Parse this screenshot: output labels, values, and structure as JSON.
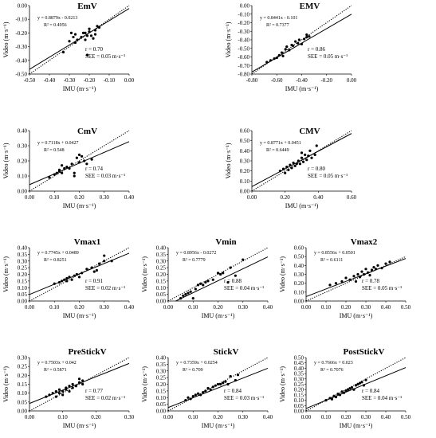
{
  "chart_data": [
    {
      "type": "scatter",
      "title": "EmV",
      "xlabel": "IMU (m·s⁻¹)",
      "ylabel": "Video (m·s⁻¹)",
      "xlim": [
        -0.5,
        0.0
      ],
      "ylim": [
        -0.5,
        0.0
      ],
      "xticks": [
        "-0.50",
        "-0.40",
        "-0.30",
        "-0.20",
        "-0.10",
        "0.00"
      ],
      "yticks": [
        "-0.50",
        "-0.40",
        "-0.30",
        "-0.20",
        "-0.10",
        "0.00"
      ],
      "points": [
        [
          -0.33,
          -0.34
        ],
        [
          -0.3,
          -0.26
        ],
        [
          -0.29,
          -0.2
        ],
        [
          -0.28,
          -0.23
        ],
        [
          -0.27,
          -0.27
        ],
        [
          -0.27,
          -0.21
        ],
        [
          -0.26,
          -0.25
        ],
        [
          -0.24,
          -0.23
        ],
        [
          -0.23,
          -0.2
        ],
        [
          -0.22,
          -0.2
        ],
        [
          -0.22,
          -0.25
        ],
        [
          -0.21,
          -0.22
        ],
        [
          -0.2,
          -0.19
        ],
        [
          -0.2,
          -0.17
        ],
        [
          -0.21,
          -0.36
        ],
        [
          -0.19,
          -0.22
        ],
        [
          -0.18,
          -0.24
        ],
        [
          -0.17,
          -0.18
        ],
        [
          -0.17,
          -0.21
        ],
        [
          -0.16,
          -0.15
        ],
        [
          -0.15,
          -0.16
        ]
      ],
      "fit": {
        "slope": 0.8879,
        "intercept": -0.0213
      },
      "equation": "y = 0.8879x - 0.0213",
      "r2": "R² = 0.4956",
      "r": "r = 0.70",
      "see": "SEE = 0.05 m·s⁻¹"
    },
    {
      "type": "scatter",
      "title": "EMV",
      "xlabel": "IMU (m·s⁻¹)",
      "ylabel": "Video (m·s⁻¹)",
      "xlim": [
        -0.8,
        0.0
      ],
      "ylim": [
        -0.8,
        0.0
      ],
      "xticks": [
        "-0.80",
        "-0.60",
        "-0.40",
        "-0.20",
        "0.00"
      ],
      "yticks": [
        "-0.80",
        "-0.70",
        "-0.60",
        "-0.50",
        "-0.40",
        "-0.30",
        "-0.20",
        "-0.10",
        "0.00"
      ],
      "points": [
        [
          -0.68,
          -0.66
        ],
        [
          -0.65,
          -0.64
        ],
        [
          -0.62,
          -0.62
        ],
        [
          -0.6,
          -0.61
        ],
        [
          -0.58,
          -0.58
        ],
        [
          -0.56,
          -0.55
        ],
        [
          -0.55,
          -0.59
        ],
        [
          -0.53,
          -0.51
        ],
        [
          -0.52,
          -0.48
        ],
        [
          -0.5,
          -0.52
        ],
        [
          -0.48,
          -0.46
        ],
        [
          -0.47,
          -0.47
        ],
        [
          -0.45,
          -0.42
        ],
        [
          -0.43,
          -0.44
        ],
        [
          -0.42,
          -0.4
        ],
        [
          -0.4,
          -0.45
        ],
        [
          -0.38,
          -0.39
        ],
        [
          -0.36,
          -0.37
        ],
        [
          -0.36,
          -0.34
        ],
        [
          -0.34,
          -0.36
        ]
      ],
      "fit": {
        "slope": 0.8441,
        "intercept": -0.101
      },
      "equation": "y = 0.8441x - 0.101",
      "r2": "R² = 0.7377",
      "r": "r = 0.86",
      "see": "SEE = 0.05 m·s⁻¹"
    },
    {
      "type": "scatter",
      "title": "CmV",
      "xlabel": "IMU (m·s⁻¹)",
      "ylabel": "Video (m·s⁻¹)",
      "xlim": [
        0.0,
        0.4
      ],
      "ylim": [
        0.0,
        0.4
      ],
      "xticks": [
        "0.00",
        "0.10",
        "0.20",
        "0.30",
        "0.40"
      ],
      "yticks": [
        "0.00",
        "0.10",
        "0.20",
        "0.30",
        "0.40"
      ],
      "points": [
        [
          0.08,
          0.09
        ],
        [
          0.1,
          0.11
        ],
        [
          0.11,
          0.12
        ],
        [
          0.12,
          0.13
        ],
        [
          0.12,
          0.14
        ],
        [
          0.13,
          0.12
        ],
        [
          0.13,
          0.17
        ],
        [
          0.14,
          0.15
        ],
        [
          0.15,
          0.16
        ],
        [
          0.16,
          0.15
        ],
        [
          0.17,
          0.18
        ],
        [
          0.18,
          0.12
        ],
        [
          0.18,
          0.1
        ],
        [
          0.19,
          0.22
        ],
        [
          0.2,
          0.19
        ],
        [
          0.2,
          0.24
        ],
        [
          0.21,
          0.23
        ],
        [
          0.22,
          0.2
        ],
        [
          0.23,
          0.18
        ],
        [
          0.25,
          0.21
        ]
      ],
      "fit": {
        "slope": 0.7118,
        "intercept": 0.0427
      },
      "equation": "y = 0.7118x + 0.0427",
      "r2": "R² = 0.548",
      "r": "r = 0.74",
      "see": "SEE = 0.03 m·s⁻¹"
    },
    {
      "type": "scatter",
      "title": "CMV",
      "xlabel": "IMU (m·s⁻¹)",
      "ylabel": "Video (m·s⁻¹)",
      "xlim": [
        0.0,
        0.6
      ],
      "ylim": [
        0.0,
        0.6
      ],
      "xticks": [
        "0.00",
        "0.20",
        "0.40",
        "0.60"
      ],
      "yticks": [
        "0.00",
        "0.10",
        "0.20",
        "0.30",
        "0.40",
        "0.50",
        "0.60"
      ],
      "points": [
        [
          0.17,
          0.2
        ],
        [
          0.19,
          0.22
        ],
        [
          0.2,
          0.18
        ],
        [
          0.21,
          0.24
        ],
        [
          0.22,
          0.21
        ],
        [
          0.23,
          0.26
        ],
        [
          0.24,
          0.23
        ],
        [
          0.25,
          0.28
        ],
        [
          0.26,
          0.25
        ],
        [
          0.27,
          0.27
        ],
        [
          0.28,
          0.3
        ],
        [
          0.29,
          0.27
        ],
        [
          0.3,
          0.38
        ],
        [
          0.3,
          0.33
        ],
        [
          0.31,
          0.29
        ],
        [
          0.32,
          0.36
        ],
        [
          0.33,
          0.31
        ],
        [
          0.34,
          0.35
        ],
        [
          0.35,
          0.4
        ],
        [
          0.36,
          0.33
        ],
        [
          0.38,
          0.36
        ],
        [
          0.39,
          0.45
        ]
      ],
      "fit": {
        "slope": 0.8771,
        "intercept": 0.0451
      },
      "equation": "y = 0.8771x + 0.0451",
      "r2": "R² = 0.6449",
      "r": "r = 0.80",
      "see": "SEE = 0.05 m·s⁻¹"
    },
    {
      "type": "scatter",
      "title": "Vmax1",
      "xlabel": "IMU (m·s⁻¹)",
      "ylabel": "Video (m·s⁻¹)",
      "xlim": [
        0.0,
        0.4
      ],
      "ylim": [
        0.0,
        0.4
      ],
      "xticks": [
        "0.00",
        "0.10",
        "0.20",
        "0.30",
        "0.40"
      ],
      "yticks": [
        "0.00",
        "0.05",
        "0.10",
        "0.15",
        "0.20",
        "0.25",
        "0.30",
        "0.35",
        "0.40"
      ],
      "points": [
        [
          0.1,
          0.13
        ],
        [
          0.12,
          0.14
        ],
        [
          0.13,
          0.15
        ],
        [
          0.14,
          0.16
        ],
        [
          0.15,
          0.17
        ],
        [
          0.15,
          0.15
        ],
        [
          0.16,
          0.18
        ],
        [
          0.17,
          0.16
        ],
        [
          0.18,
          0.19
        ],
        [
          0.19,
          0.2
        ],
        [
          0.2,
          0.18
        ],
        [
          0.21,
          0.21
        ],
        [
          0.23,
          0.24
        ],
        [
          0.25,
          0.25
        ],
        [
          0.26,
          0.22
        ],
        [
          0.27,
          0.23
        ],
        [
          0.28,
          0.28
        ],
        [
          0.3,
          0.3
        ],
        [
          0.3,
          0.34
        ],
        [
          0.33,
          0.3
        ]
      ],
      "fit": {
        "slope": 0.7745,
        "intercept": 0.0489
      },
      "equation": "y = 0.7745x + 0.0489",
      "r2": "R² = 0.8251",
      "r": "r = 0.91",
      "see": "SEE = 0.02 m·s⁻¹"
    },
    {
      "type": "scatter",
      "title": "Vmin",
      "xlabel": "IMU (m·s⁻¹)",
      "ylabel": "Video (m·s⁻¹)",
      "xlim": [
        0.0,
        0.4
      ],
      "ylim": [
        0.0,
        0.4
      ],
      "xticks": [
        "0.00",
        "0.10",
        "0.20",
        "0.30",
        "0.40"
      ],
      "yticks": [
        "0.00",
        "0.05",
        "0.10",
        "0.15",
        "0.20",
        "0.25",
        "0.30",
        "0.35",
        "0.40"
      ],
      "points": [
        [
          0.05,
          0.02
        ],
        [
          0.06,
          0.04
        ],
        [
          0.07,
          0.05
        ],
        [
          0.08,
          0.06
        ],
        [
          0.09,
          0.07
        ],
        [
          0.1,
          0.02
        ],
        [
          0.11,
          0.09
        ],
        [
          0.12,
          0.12
        ],
        [
          0.13,
          0.13
        ],
        [
          0.14,
          0.12
        ],
        [
          0.15,
          0.14
        ],
        [
          0.16,
          0.15
        ],
        [
          0.18,
          0.16
        ],
        [
          0.2,
          0.21
        ],
        [
          0.21,
          0.2
        ],
        [
          0.22,
          0.21
        ],
        [
          0.24,
          0.14
        ],
        [
          0.25,
          0.25
        ],
        [
          0.27,
          0.19
        ],
        [
          0.3,
          0.31
        ]
      ],
      "fit": {
        "slope": 0.8956,
        "intercept": -0.0272
      },
      "equation": "y = 0.8956x - 0.0272",
      "r2": "R² = 0.7779",
      "r": "r = 0.88",
      "see": "SEE = 0.04 m·s⁻¹"
    },
    {
      "type": "scatter",
      "title": "Vmax2",
      "xlabel": "IMU (m·s⁻¹)",
      "ylabel": "Video (m·s⁻¹)",
      "xlim": [
        0.0,
        0.5
      ],
      "ylim": [
        0.0,
        0.6
      ],
      "xticks": [
        "0.00",
        "0.10",
        "0.20",
        "0.30",
        "0.40",
        "0.50"
      ],
      "yticks": [
        "0.00",
        "0.10",
        "0.20",
        "0.30",
        "0.40",
        "0.50",
        "0.60"
      ],
      "points": [
        [
          0.12,
          0.18
        ],
        [
          0.15,
          0.2
        ],
        [
          0.18,
          0.22
        ],
        [
          0.2,
          0.26
        ],
        [
          0.22,
          0.24
        ],
        [
          0.24,
          0.28
        ],
        [
          0.25,
          0.22
        ],
        [
          0.26,
          0.3
        ],
        [
          0.27,
          0.27
        ],
        [
          0.28,
          0.33
        ],
        [
          0.29,
          0.3
        ],
        [
          0.3,
          0.36
        ],
        [
          0.31,
          0.32
        ],
        [
          0.32,
          0.29
        ],
        [
          0.33,
          0.35
        ],
        [
          0.34,
          0.38
        ],
        [
          0.35,
          0.36
        ],
        [
          0.36,
          0.4
        ],
        [
          0.38,
          0.37
        ],
        [
          0.4,
          0.42
        ],
        [
          0.42,
          0.44
        ]
      ],
      "fit": {
        "slope": 0.8556,
        "intercept": 0.0501
      },
      "equation": "y = 0.8556x + 0.0501",
      "r2": "R² = 0.6111",
      "r": "r = 0.78",
      "see": "SEE = 0.05 m·s⁻¹"
    },
    {
      "type": "scatter",
      "title": "PreStickV",
      "xlabel": "IMU (m·s⁻¹)",
      "ylabel": "Video (m·s⁻¹)",
      "xlim": [
        0.0,
        0.3
      ],
      "ylim": [
        0.0,
        0.3
      ],
      "xticks": [
        "0.00",
        "0.10",
        "0.20",
        "0.30"
      ],
      "yticks": [
        "0.00",
        "0.05",
        "0.10",
        "0.15",
        "0.20",
        "0.25",
        "0.30"
      ],
      "points": [
        [
          0.05,
          0.08
        ],
        [
          0.06,
          0.09
        ],
        [
          0.07,
          0.1
        ],
        [
          0.08,
          0.08
        ],
        [
          0.08,
          0.11
        ],
        [
          0.09,
          0.1
        ],
        [
          0.09,
          0.12
        ],
        [
          0.1,
          0.11
        ],
        [
          0.1,
          0.09
        ],
        [
          0.11,
          0.13
        ],
        [
          0.11,
          0.12
        ],
        [
          0.12,
          0.14
        ],
        [
          0.12,
          0.11
        ],
        [
          0.13,
          0.13
        ],
        [
          0.13,
          0.15
        ],
        [
          0.14,
          0.14
        ],
        [
          0.15,
          0.16
        ],
        [
          0.15,
          0.18
        ],
        [
          0.16,
          0.15
        ],
        [
          0.16,
          0.17
        ]
      ],
      "fit": {
        "slope": 0.7503,
        "intercept": 0.042
      },
      "equation": "y = 0.7503x + 0.042",
      "r2": "R² = 0.5871",
      "r": "r = 0.77",
      "see": "SEE = 0.02 m·s⁻¹"
    },
    {
      "type": "scatter",
      "title": "StickV",
      "xlabel": "IMU (m·s⁻¹)",
      "ylabel": "Video (m·s⁻¹)",
      "xlim": [
        0.0,
        0.4
      ],
      "ylim": [
        0.0,
        0.4
      ],
      "xticks": [
        "0.00",
        "0.10",
        "0.20",
        "0.30",
        "0.40"
      ],
      "yticks": [
        "0.00",
        "0.05",
        "0.10",
        "0.15",
        "0.20",
        "0.25",
        "0.30",
        "0.35",
        "0.40"
      ],
      "points": [
        [
          0.07,
          0.08
        ],
        [
          0.08,
          0.1
        ],
        [
          0.09,
          0.09
        ],
        [
          0.1,
          0.11
        ],
        [
          0.11,
          0.12
        ],
        [
          0.12,
          0.13
        ],
        [
          0.13,
          0.12
        ],
        [
          0.14,
          0.14
        ],
        [
          0.15,
          0.15
        ],
        [
          0.16,
          0.17
        ],
        [
          0.17,
          0.16
        ],
        [
          0.18,
          0.18
        ],
        [
          0.19,
          0.19
        ],
        [
          0.2,
          0.2
        ],
        [
          0.21,
          0.2
        ],
        [
          0.22,
          0.21
        ],
        [
          0.23,
          0.22
        ],
        [
          0.24,
          0.2
        ],
        [
          0.25,
          0.26
        ],
        [
          0.27,
          0.23
        ],
        [
          0.28,
          0.27
        ]
      ],
      "fit": {
        "slope": 0.7359,
        "intercept": 0.0254
      },
      "equation": "y = 0.7359x + 0.0254",
      "r2": "R² = 0.709",
      "r": "r = 0.84",
      "see": "SEE = 0.03 m·s⁻¹"
    },
    {
      "type": "scatter",
      "title": "PostStickV",
      "xlabel": "IMU (m·s⁻¹)",
      "ylabel": "Video (m·s⁻¹)",
      "xlim": [
        0.0,
        0.5
      ],
      "ylim": [
        0.0,
        0.5
      ],
      "xticks": [
        "0.00",
        "0.10",
        "0.20",
        "0.30",
        "0.40",
        "0.50"
      ],
      "yticks": [
        "0.00",
        "0.05",
        "0.10",
        "0.15",
        "0.20",
        "0.25",
        "0.30",
        "0.35",
        "0.40",
        "0.45",
        "0.50"
      ],
      "points": [
        [
          0.1,
          0.1
        ],
        [
          0.12,
          0.12
        ],
        [
          0.13,
          0.11
        ],
        [
          0.14,
          0.14
        ],
        [
          0.15,
          0.13
        ],
        [
          0.16,
          0.16
        ],
        [
          0.17,
          0.15
        ],
        [
          0.18,
          0.18
        ],
        [
          0.19,
          0.17
        ],
        [
          0.2,
          0.19
        ],
        [
          0.21,
          0.2
        ],
        [
          0.22,
          0.21
        ],
        [
          0.23,
          0.22
        ],
        [
          0.24,
          0.2
        ],
        [
          0.25,
          0.24
        ],
        [
          0.26,
          0.25
        ],
        [
          0.27,
          0.26
        ],
        [
          0.28,
          0.27
        ],
        [
          0.29,
          0.24
        ],
        [
          0.3,
          0.29
        ]
      ],
      "fit": {
        "slope": 0.7666,
        "intercept": 0.023
      },
      "equation": "y = 0.7666x + 0.023",
      "r2": "R² = 0.7076",
      "r": "r = 0.84",
      "see": "SEE = 0.04 m·s⁻¹"
    }
  ]
}
